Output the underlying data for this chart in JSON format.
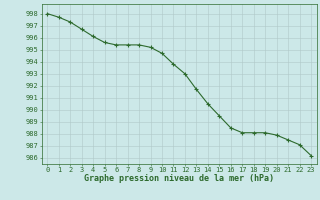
{
  "x": [
    0,
    1,
    2,
    3,
    4,
    5,
    6,
    7,
    8,
    9,
    10,
    11,
    12,
    13,
    14,
    15,
    16,
    17,
    18,
    19,
    20,
    21,
    22,
    23
  ],
  "y": [
    998.0,
    997.7,
    997.3,
    996.7,
    996.1,
    995.6,
    995.4,
    995.4,
    995.4,
    995.2,
    994.7,
    993.8,
    993.0,
    991.7,
    990.5,
    989.5,
    988.5,
    988.1,
    988.1,
    988.1,
    987.9,
    987.5,
    987.1,
    986.2
  ],
  "line_color": "#2d6a2d",
  "marker": "+",
  "marker_size": 3,
  "line_width": 0.8,
  "bg_color": "#cce8e8",
  "grid_color": "#b0c8c8",
  "xlabel": "Graphe pression niveau de la mer (hPa)",
  "xlabel_color": "#2d6a2d",
  "tick_color": "#2d6a2d",
  "ylim": [
    985.5,
    998.8
  ],
  "xlim": [
    -0.5,
    23.5
  ],
  "yticks": [
    986,
    987,
    988,
    989,
    990,
    991,
    992,
    993,
    994,
    995,
    996,
    997,
    998
  ],
  "xticks": [
    0,
    1,
    2,
    3,
    4,
    5,
    6,
    7,
    8,
    9,
    10,
    11,
    12,
    13,
    14,
    15,
    16,
    17,
    18,
    19,
    20,
    21,
    22,
    23
  ],
  "tick_fontsize": 5,
  "xlabel_fontsize": 6
}
